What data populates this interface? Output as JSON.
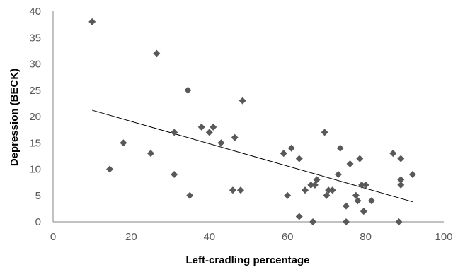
{
  "chart_data": {
    "type": "scatter",
    "title": "",
    "xlabel": "Left-cradling percentage",
    "ylabel": "Depression (BECK)",
    "xlim": [
      0,
      100
    ],
    "ylim": [
      0,
      40
    ],
    "xticks": [
      0,
      20,
      40,
      60,
      80,
      100
    ],
    "yticks": [
      0,
      5,
      10,
      15,
      20,
      25,
      30,
      35,
      40
    ],
    "grid": false,
    "legend": "none",
    "marker": "diamond",
    "marker_color": "#595959",
    "trendline": {
      "type": "linear",
      "x": [
        10,
        92
      ],
      "y": [
        21.2,
        3.8
      ],
      "color": "#000000"
    },
    "series": [
      {
        "x": [
          10,
          14.5,
          18,
          25,
          26.5,
          31,
          31,
          34.5,
          35,
          38,
          40,
          41,
          43,
          46,
          46.5,
          48,
          48.5,
          59,
          60,
          61,
          63,
          63,
          64.5,
          66,
          66.5,
          67,
          67.5,
          69.5,
          70,
          70.5,
          71.5,
          73,
          73.5,
          75,
          75,
          76,
          77.5,
          78,
          78.5,
          79,
          79.5,
          80,
          81.5,
          87,
          88.5,
          89,
          89,
          89,
          92
        ],
        "y": [
          38,
          10,
          15,
          13,
          32,
          17,
          9,
          25,
          5,
          18,
          17,
          18,
          15,
          6,
          16,
          6,
          23,
          13,
          5,
          14,
          12,
          1,
          6,
          7,
          0,
          7,
          8,
          17,
          5,
          6,
          6,
          9,
          14,
          3,
          0,
          11,
          5,
          4,
          12,
          7,
          2,
          7,
          4,
          13,
          0,
          12,
          8,
          7,
          9
        ]
      }
    ]
  }
}
